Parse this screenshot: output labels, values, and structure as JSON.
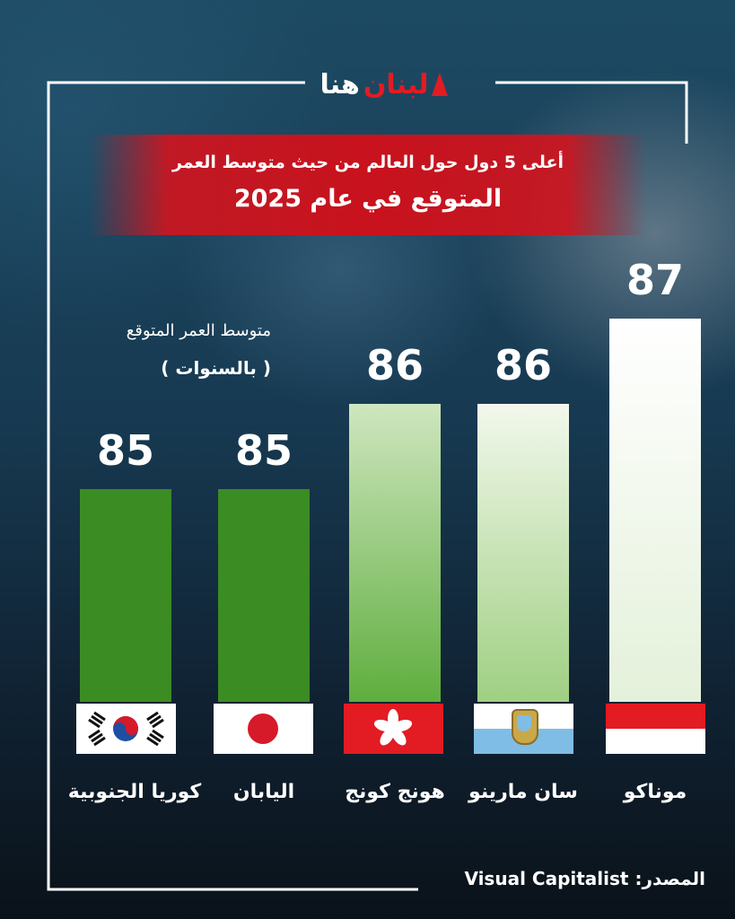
{
  "brand": {
    "logo_red": "لبنان",
    "logo_white": "هنا"
  },
  "title_line1": "أعلى 5 دول حول العالم من حيث متوسط العمر",
  "title_line2": "المتوقع في عام 2025",
  "unit_line1": "متوسط العمر المتوقع",
  "unit_line2": "( بالسنوات )",
  "source_label": "المصدر:",
  "source_value": "Visual Capitalist",
  "colors": {
    "bar_dark_green": "#3a8c23",
    "bar_mid_green": "#7fbf5f",
    "bar_light_green": "#e8f3df",
    "title_red": "#c8121d"
  },
  "chart_data": {
    "type": "bar",
    "title": "أعلى 5 دول حول العالم من حيث متوسط العمر المتوقع في عام 2025",
    "ylabel": "متوسط العمر المتوقع ( بالسنوات )",
    "categories": [
      "موناكو",
      "سان مارينو",
      "هونج كونج",
      "اليابان",
      "كوريا الجنوبية"
    ],
    "values": [
      87,
      86,
      86,
      85,
      85
    ],
    "flags": [
      "monaco-flag-icon",
      "san-marino-flag-icon",
      "hong-kong-flag-icon",
      "japan-flag-icon",
      "south-korea-flag-icon"
    ],
    "grid": false,
    "legend": "none"
  }
}
